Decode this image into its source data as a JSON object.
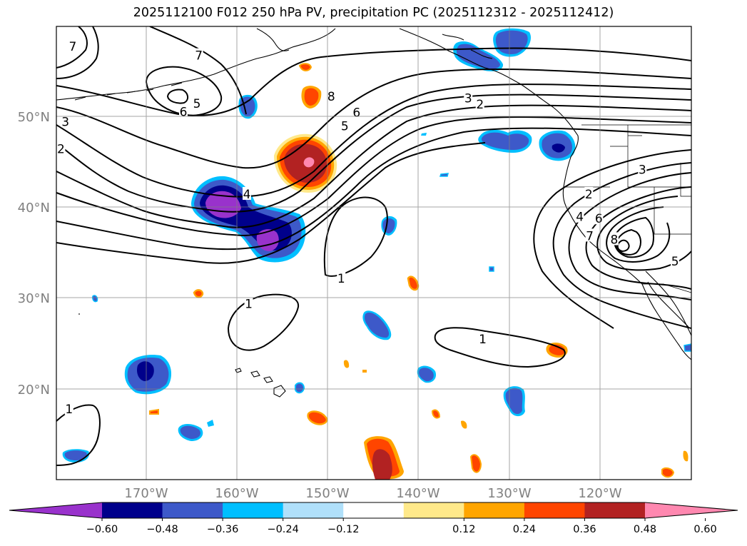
{
  "title": "2025112100 F012 250 hPa PV, precipitation PC (2025112312 - 2025112412)",
  "map": {
    "lat_ticks": [
      "50°N",
      "40°N",
      "30°N",
      "20°N"
    ],
    "lon_ticks": [
      "170°W",
      "160°W",
      "150°W",
      "140°W",
      "130°W",
      "120°W"
    ],
    "lat_range": [
      10,
      60
    ],
    "lon_range": [
      -180,
      -110
    ]
  },
  "colorbar": {
    "ticks": [
      "−0.60",
      "−0.48",
      "−0.36",
      "−0.24",
      "−0.12",
      "0.12",
      "0.24",
      "0.36",
      "0.48",
      "0.60"
    ],
    "colors": [
      "#9932cc",
      "#00008b",
      "#3d59c9",
      "#00bfff",
      "#b0e0fa",
      "#ffffff",
      "#ffe98a",
      "#ffa500",
      "#ff4500",
      "#b22222",
      "#ff88b0"
    ]
  },
  "contour_labels": [
    {
      "text": "7",
      "lon": -178.2,
      "lat": 57.8
    },
    {
      "text": "7",
      "lon": -164.3,
      "lat": 56.8
    },
    {
      "text": "6",
      "lon": -166.0,
      "lat": 50.6
    },
    {
      "text": "5",
      "lon": -164.5,
      "lat": 51.5
    },
    {
      "text": "3",
      "lon": -179.0,
      "lat": 49.5
    },
    {
      "text": "2",
      "lon": -179.5,
      "lat": 46.5
    },
    {
      "text": "8",
      "lon": -149.7,
      "lat": 52.3
    },
    {
      "text": "6",
      "lon": -146.9,
      "lat": 50.5
    },
    {
      "text": "5",
      "lon": -148.2,
      "lat": 49.0
    },
    {
      "text": "3",
      "lon": -134.6,
      "lat": 52.1
    },
    {
      "text": "2",
      "lon": -133.3,
      "lat": 51.4
    },
    {
      "text": "4",
      "lon": -159.0,
      "lat": 41.5
    },
    {
      "text": "1",
      "lon": -148.6,
      "lat": 32.2
    },
    {
      "text": "1",
      "lon": -158.8,
      "lat": 29.4
    },
    {
      "text": "1",
      "lon": -133.0,
      "lat": 25.5
    },
    {
      "text": "1",
      "lon": -178.6,
      "lat": 17.8
    },
    {
      "text": "3",
      "lon": -115.4,
      "lat": 44.2
    },
    {
      "text": "2",
      "lon": -121.3,
      "lat": 41.5
    },
    {
      "text": "4",
      "lon": -122.3,
      "lat": 39.0
    },
    {
      "text": "6",
      "lon": -120.2,
      "lat": 38.8
    },
    {
      "text": "7",
      "lon": -121.2,
      "lat": 36.9
    },
    {
      "text": "8",
      "lon": -118.5,
      "lat": 36.5
    },
    {
      "text": "5",
      "lon": -111.8,
      "lat": 34.1
    }
  ]
}
